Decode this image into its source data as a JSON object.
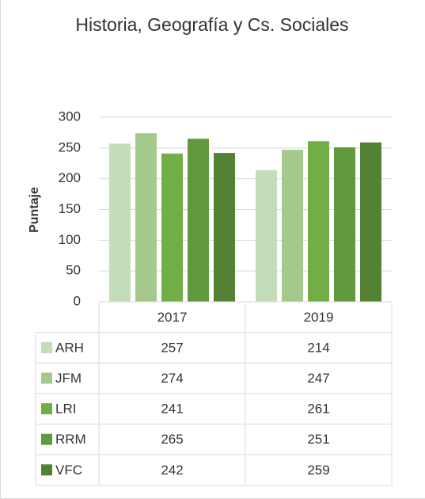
{
  "chart_data": {
    "type": "bar",
    "title": "Historia, Geografía y Cs. Sociales",
    "y_label": "Puntaje",
    "categories": [
      "2017",
      "2019"
    ],
    "series": [
      {
        "name": "ARH",
        "color": "#c5dcb8",
        "values": [
          257,
          214
        ]
      },
      {
        "name": "JFM",
        "color": "#a5c98c",
        "values": [
          274,
          247
        ]
      },
      {
        "name": "LRI",
        "color": "#72ae47",
        "values": [
          241,
          261
        ]
      },
      {
        "name": "RRM",
        "color": "#61993f",
        "values": [
          265,
          251
        ]
      },
      {
        "name": "VFC",
        "color": "#548235",
        "values": [
          242,
          259
        ]
      }
    ],
    "ylim": [
      0,
      300
    ],
    "yticks": [
      0,
      50,
      100,
      150,
      200,
      250,
      300
    ],
    "grid": true
  }
}
